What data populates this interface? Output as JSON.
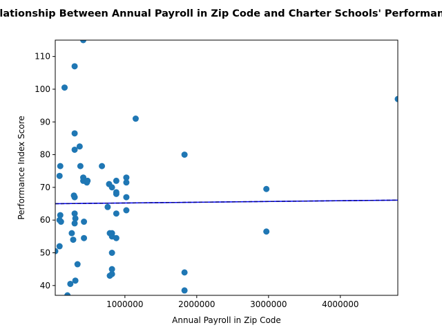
{
  "chart_data": {
    "type": "scatter",
    "title": "Relationship Between Annual Payroll in Zip Code and Charter Schools' Performance",
    "xlabel": "Annual Payroll in Zip Code",
    "ylabel": "Performance Index Score",
    "xlim": [
      30000,
      4800000
    ],
    "ylim": [
      37,
      115
    ],
    "x_ticks": [
      1000000,
      2000000,
      3000000,
      4000000
    ],
    "x_tick_labels": [
      "1000000",
      "2000000",
      "3000000",
      "4000000"
    ],
    "y_ticks": [
      40,
      50,
      60,
      70,
      80,
      90,
      100,
      110
    ],
    "y_tick_labels": [
      "40",
      "50",
      "60",
      "70",
      "80",
      "90",
      "100",
      "110"
    ],
    "grid": false,
    "colors": {
      "points": "#1f77b4",
      "trend": "#0000ff",
      "trend_dashed": "#000080"
    },
    "series": [
      {
        "values": [
          [
            30000,
            50.5
          ],
          [
            90000,
            73.5
          ],
          [
            100000,
            76.5
          ],
          [
            90000,
            60
          ],
          [
            100000,
            61.5
          ],
          [
            110000,
            59.5
          ],
          [
            90000,
            52
          ],
          [
            160000,
            100.5
          ],
          [
            200000,
            37
          ],
          [
            240000,
            40.5
          ],
          [
            260000,
            56
          ],
          [
            280000,
            54
          ],
          [
            290000,
            67.5
          ],
          [
            300000,
            67
          ],
          [
            300000,
            62
          ],
          [
            300000,
            59
          ],
          [
            310000,
            60.5
          ],
          [
            310000,
            41.5
          ],
          [
            300000,
            86.5
          ],
          [
            300000,
            81.5
          ],
          [
            300000,
            107
          ],
          [
            340000,
            46.5
          ],
          [
            370000,
            82.5
          ],
          [
            380000,
            76.5
          ],
          [
            420000,
            115
          ],
          [
            420000,
            73
          ],
          [
            420000,
            72
          ],
          [
            430000,
            59.5
          ],
          [
            430000,
            54.5
          ],
          [
            470000,
            71.5
          ],
          [
            480000,
            72
          ],
          [
            680000,
            76.5
          ],
          [
            760000,
            64
          ],
          [
            780000,
            71
          ],
          [
            790000,
            56
          ],
          [
            790000,
            43
          ],
          [
            820000,
            70
          ],
          [
            820000,
            56
          ],
          [
            820000,
            55
          ],
          [
            820000,
            50
          ],
          [
            820000,
            45
          ],
          [
            820000,
            43.5
          ],
          [
            880000,
            72
          ],
          [
            880000,
            68
          ],
          [
            880000,
            68.5
          ],
          [
            880000,
            62
          ],
          [
            880000,
            54.5
          ],
          [
            1020000,
            73
          ],
          [
            1020000,
            71.5
          ],
          [
            1020000,
            67
          ],
          [
            1020000,
            63
          ],
          [
            1150000,
            91
          ],
          [
            1830000,
            80
          ],
          [
            1830000,
            44
          ],
          [
            1830000,
            38.5
          ],
          [
            2970000,
            69.5
          ],
          [
            2970000,
            56.5
          ],
          [
            4800000,
            97
          ]
        ]
      }
    ],
    "trendline": {
      "x": [
        30000,
        4800000
      ],
      "y": [
        65,
        66.1
      ]
    }
  }
}
